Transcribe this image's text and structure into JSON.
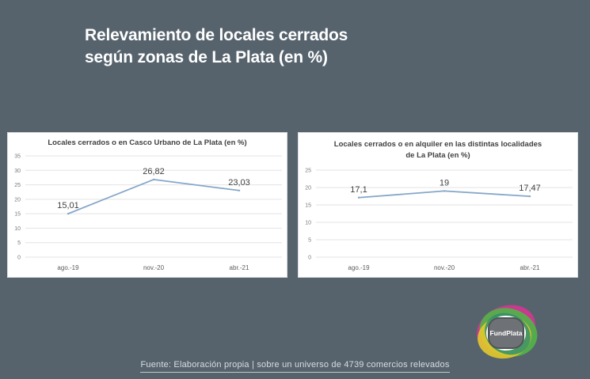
{
  "header": {
    "title_line1": "Relevamiento de locales cerrados",
    "title_line2": "según zonas de La Plata (en %)"
  },
  "chart_data": [
    {
      "type": "line",
      "title": "Locales cerrados o en Casco Urbano de La Plata (en %)",
      "categories": [
        "ago.-19",
        "nov.-20",
        "abr.-21"
      ],
      "values": [
        15.01,
        26.82,
        23.03
      ],
      "labels": [
        "15,01",
        "26,82",
        "23,03"
      ],
      "yticks": [
        0,
        5,
        10,
        15,
        20,
        25,
        30,
        35
      ],
      "ylim": [
        0,
        35
      ],
      "grid": true,
      "color": "#86a7c9"
    },
    {
      "type": "line",
      "title_line1": "Locales cerrados o en alquiler en las distintas localidades",
      "title_line2": "de La Plata (en %)",
      "categories": [
        "ago.-19",
        "nov.-20",
        "abr.-21"
      ],
      "values": [
        17.1,
        19,
        17.47
      ],
      "labels": [
        "17,1",
        "19",
        "17,47"
      ],
      "yticks": [
        0,
        5,
        10,
        15,
        20,
        25
      ],
      "ylim": [
        0,
        25
      ],
      "grid": true,
      "color": "#86a7c9"
    }
  ],
  "footer": {
    "source": "Fuente: Elaboración propia | sobre un universo de 4739 comercios relevados"
  },
  "logo": {
    "text": "FundPlata"
  }
}
